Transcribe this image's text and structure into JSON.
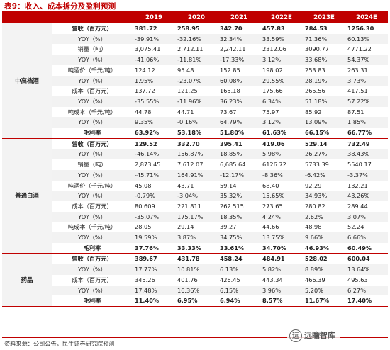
{
  "title": "表9：收入、成本拆分及盈利预测",
  "header": [
    "",
    "",
    "2019",
    "2020",
    "2021",
    "2022E",
    "2023E",
    "2024E"
  ],
  "sections": [
    {
      "name": "中高档酒",
      "rows": [
        {
          "label": "营收（百万元）",
          "bold": true,
          "values": [
            "381.72",
            "258.95",
            "342.70",
            "457.83",
            "784.53",
            "1256.30"
          ]
        },
        {
          "label": "YOY（%）",
          "values": [
            "-39.91%",
            "-32.16%",
            "32.34%",
            "33.59%",
            "71.36%",
            "60.13%"
          ]
        },
        {
          "label": "销量（吨）",
          "values": [
            "3,075.41",
            "2,712.11",
            "2,242.11",
            "2312.06",
            "3090.77",
            "4771.22"
          ]
        },
        {
          "label": "YOY（%）",
          "values": [
            "-41.06%",
            "-11.81%",
            "-17.33%",
            "3.12%",
            "33.68%",
            "54.37%"
          ]
        },
        {
          "label": "吨酒价（千元/吨）",
          "values": [
            "124.12",
            "95.48",
            "152.85",
            "198.02",
            "253.83",
            "263.31"
          ]
        },
        {
          "label": "YOY（%）",
          "values": [
            "1.95%",
            "-23.07%",
            "60.08%",
            "29.55%",
            "28.19%",
            "3.73%"
          ]
        },
        {
          "label": "成本（百万元）",
          "values": [
            "137.72",
            "121.25",
            "165.18",
            "175.66",
            "265.56",
            "417.51"
          ]
        },
        {
          "label": "YOY（%）",
          "values": [
            "-35.55%",
            "-11.96%",
            "36.23%",
            "6.34%",
            "51.18%",
            "57.22%"
          ]
        },
        {
          "label": "吨成本（千元/吨）",
          "values": [
            "44.78",
            "44.71",
            "73.67",
            "75.97",
            "85.92",
            "87.51"
          ]
        },
        {
          "label": "YOY（%）",
          "values": [
            "9.35%",
            "-0.16%",
            "64.79%",
            "3.12%",
            "13.09%",
            "1.85%"
          ]
        },
        {
          "label": "毛利率",
          "bold": true,
          "values": [
            "63.92%",
            "53.18%",
            "51.80%",
            "61.63%",
            "66.15%",
            "66.77%"
          ]
        }
      ]
    },
    {
      "name": "普通白酒",
      "rows": [
        {
          "label": "营收（百万元）",
          "bold": true,
          "values": [
            "129.52",
            "332.70",
            "395.41",
            "419.06",
            "529.14",
            "732.49"
          ]
        },
        {
          "label": "YOY（%）",
          "values": [
            "-46.14%",
            "156.87%",
            "18.85%",
            "5.98%",
            "26.27%",
            "38.43%"
          ]
        },
        {
          "label": "销量（吨）",
          "values": [
            "2,873.45",
            "7,612.07",
            "6,685.64",
            "6126.72",
            "5733.39",
            "5540.17"
          ]
        },
        {
          "label": "YOY（%）",
          "values": [
            "-45.71%",
            "164.91%",
            "-12.17%",
            "-8.36%",
            "-6.42%",
            "-3.37%"
          ]
        },
        {
          "label": "吨酒价（千元/吨）",
          "values": [
            "45.08",
            "43.71",
            "59.14",
            "68.40",
            "92.29",
            "132.21"
          ]
        },
        {
          "label": "YOY（%）",
          "values": [
            "-0.79%",
            "-3.04%",
            "35.32%",
            "15.65%",
            "34.93%",
            "43.26%"
          ]
        },
        {
          "label": "成本（百万元）",
          "values": [
            "80.609",
            "221.811",
            "262.515",
            "273.65",
            "280.82",
            "289.44"
          ]
        },
        {
          "label": "YOY（%）",
          "values": [
            "-35.07%",
            "175.17%",
            "18.35%",
            "4.24%",
            "2.62%",
            "3.07%"
          ]
        },
        {
          "label": "吨成本（千元/吨）",
          "values": [
            "28.05",
            "29.14",
            "39.27",
            "44.66",
            "48.98",
            "52.24"
          ]
        },
        {
          "label": "YOY（%）",
          "values": [
            "19.59%",
            "3.87%",
            "34.75%",
            "13.75%",
            "9.66%",
            "6.66%"
          ]
        },
        {
          "label": "毛利率",
          "bold": true,
          "values": [
            "37.76%",
            "33.33%",
            "33.61%",
            "34.70%",
            "46.93%",
            "60.49%"
          ]
        }
      ]
    },
    {
      "name": "药品",
      "rows": [
        {
          "label": "营收（百万元）",
          "bold": true,
          "values": [
            "389.67",
            "431.78",
            "458.24",
            "484.91",
            "528.02",
            "600.04"
          ]
        },
        {
          "label": "YOY（%）",
          "values": [
            "17.77%",
            "10.81%",
            "6.13%",
            "5.82%",
            "8.89%",
            "13.64%"
          ]
        },
        {
          "label": "成本（百万元）",
          "values": [
            "345.26",
            "401.76",
            "426.45",
            "443.34",
            "466.39",
            "495.63"
          ]
        },
        {
          "label": "YOY（%）",
          "values": [
            "17.48%",
            "16.36%",
            "6.15%",
            "3.96%",
            "5.20%",
            "6.27%"
          ]
        },
        {
          "label": "毛利率",
          "bold": true,
          "values": [
            "11.40%",
            "6.95%",
            "6.94%",
            "8.57%",
            "11.67%",
            "17.40%"
          ]
        }
      ]
    }
  ],
  "source": "资料来源：公司公告，民生证券研究院预测",
  "watermark": {
    "icon": "circle-logo-icon",
    "icon_glyph": "远",
    "text": "远瞻智库"
  }
}
